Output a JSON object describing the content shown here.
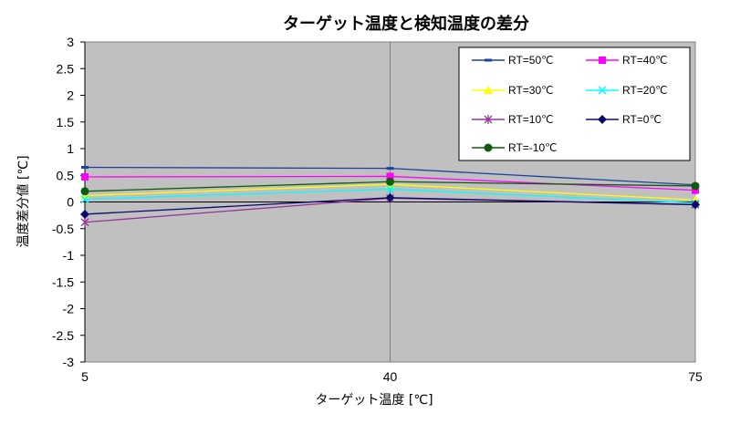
{
  "chart_data": {
    "type": "line",
    "title": "ターゲット温度と検知温度の差分",
    "xlabel": "ターゲット温度 [℃]",
    "ylabel": "温度差分値 [℃]",
    "categories": [
      "5",
      "40",
      "75"
    ],
    "ylim": [
      -3,
      3
    ],
    "yticks": [
      3,
      2.5,
      2,
      1.5,
      1,
      0.5,
      0,
      -0.5,
      -1,
      -1.5,
      -2,
      -2.5,
      -3
    ],
    "ytick_labels": [
      "3",
      "2.5",
      "2",
      "1.5",
      "1",
      "0.5",
      "0",
      "-0.5",
      "-1",
      "-1.5",
      "-2",
      "-2.5",
      "-3"
    ],
    "grid": {
      "horizontal": false,
      "vertical": true
    },
    "plot_background": "#c0c0c0",
    "legend_position": "top-right",
    "series": [
      {
        "name": "RT=50℃",
        "values": [
          0.65,
          0.63,
          0.32
        ],
        "color": "#1f3f9f",
        "marker": "dash"
      },
      {
        "name": "RT=40℃",
        "values": [
          0.47,
          0.48,
          0.22
        ],
        "color": "#ff00ff",
        "marker": "square"
      },
      {
        "name": "RT=30℃",
        "values": [
          0.12,
          0.33,
          0.04
        ],
        "color": "#ffff00",
        "marker": "triangle"
      },
      {
        "name": "RT=20℃",
        "values": [
          0.05,
          0.24,
          -0.02
        ],
        "color": "#00ffff",
        "marker": "x"
      },
      {
        "name": "RT=10℃",
        "values": [
          -0.38,
          0.07,
          -0.05
        ],
        "color": "#993399",
        "marker": "star"
      },
      {
        "name": "RT=0℃",
        "values": [
          -0.23,
          0.08,
          -0.05
        ],
        "color": "#0a0a6e",
        "marker": "diamond"
      },
      {
        "name": "RT=-10℃",
        "values": [
          0.2,
          0.38,
          0.3
        ],
        "color": "#0f5a0f",
        "marker": "circle"
      }
    ]
  }
}
